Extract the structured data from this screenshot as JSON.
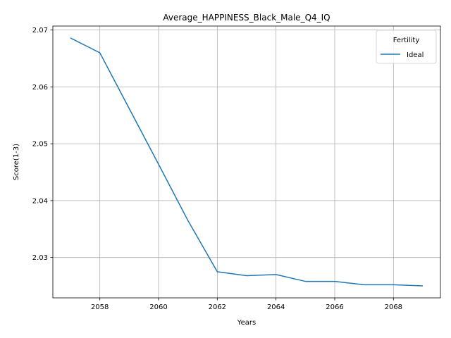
{
  "chart_data": {
    "type": "line",
    "title": "Average_HAPPINESS_Black_Male_Q4_IQ",
    "xlabel": "Years",
    "ylabel": "Score(1-3)",
    "xlim": [
      2056.4,
      2069.6
    ],
    "ylim": [
      2.0229,
      2.0707
    ],
    "xticks": [
      2058,
      2060,
      2062,
      2064,
      2066,
      2068
    ],
    "yticks": [
      2.03,
      2.04,
      2.05,
      2.06,
      2.07
    ],
    "grid": true,
    "legend": {
      "title": "Fertility",
      "placement": "top-right"
    },
    "series": [
      {
        "name": "Ideal",
        "color": "#1f77b4",
        "x": [
          2057,
          2058,
          2059,
          2060,
          2061,
          2062,
          2063,
          2064,
          2065,
          2066,
          2067,
          2068,
          2069
        ],
        "y": [
          2.0686,
          2.066,
          2.0562,
          2.0464,
          2.0365,
          2.0275,
          2.0268,
          2.027,
          2.0258,
          2.0258,
          2.0252,
          2.0252,
          2.025
        ]
      }
    ]
  }
}
